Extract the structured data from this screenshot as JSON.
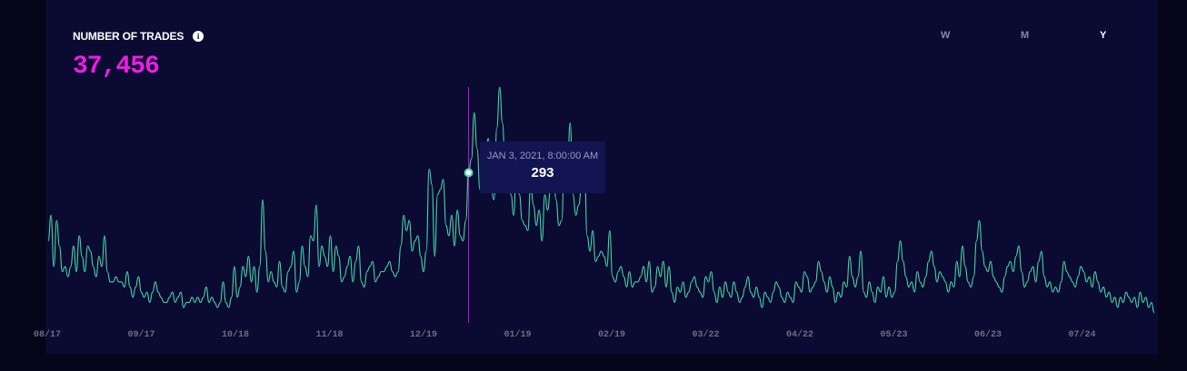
{
  "header": {
    "title": "NUMBER OF TRADES",
    "info_icon": "info-icon",
    "value": "37,456"
  },
  "periods": [
    {
      "label": "W",
      "active": false
    },
    {
      "label": "M",
      "active": false
    },
    {
      "label": "Y",
      "active": true
    }
  ],
  "tooltip": {
    "date": "JAN 3, 2021, 8:00:00 AM",
    "value": "293"
  },
  "colors": {
    "line": "#45d6a6",
    "crosshair": "#b020d8",
    "value": "#ee1ce6",
    "background": "#0b0a32"
  },
  "chart_data": {
    "type": "line",
    "x_tick_labels": [
      "08/17",
      "09/17",
      "10/18",
      "11/18",
      "12/19",
      "01/19",
      "02/19",
      "03/22",
      "04/22",
      "05/23",
      "06/23",
      "07/24"
    ],
    "ylim": [
      0,
      460
    ],
    "grid": false,
    "highlight_index": 149,
    "values": [
      160,
      210,
      110,
      200,
      150,
      100,
      110,
      90,
      110,
      150,
      100,
      170,
      130,
      100,
      150,
      140,
      110,
      90,
      130,
      110,
      170,
      100,
      80,
      80,
      90,
      80,
      80,
      70,
      100,
      70,
      50,
      70,
      90,
      60,
      50,
      60,
      40,
      60,
      80,
      60,
      50,
      40,
      40,
      50,
      60,
      40,
      50,
      60,
      30,
      40,
      40,
      50,
      40,
      50,
      40,
      50,
      70,
      40,
      50,
      40,
      30,
      40,
      80,
      40,
      30,
      50,
      110,
      50,
      70,
      110,
      90,
      130,
      80,
      110,
      60,
      110,
      240,
      140,
      80,
      100,
      80,
      70,
      120,
      70,
      60,
      100,
      110,
      140,
      60,
      80,
      150,
      110,
      90,
      170,
      160,
      230,
      110,
      150,
      130,
      110,
      170,
      100,
      150,
      130,
      80,
      90,
      110,
      130,
      80,
      120,
      150,
      80,
      70,
      100,
      110,
      120,
      80,
      90,
      100,
      100,
      110,
      120,
      100,
      90,
      100,
      150,
      210,
      180,
      200,
      140,
      160,
      170,
      130,
      100,
      140,
      300,
      270,
      130,
      250,
      260,
      280,
      190,
      170,
      210,
      150,
      220,
      170,
      160,
      200,
      293,
      320,
      410,
      340,
      260,
      300,
      330,
      360,
      260,
      240,
      380,
      460,
      390,
      290,
      300,
      250,
      210,
      330,
      250,
      200,
      190,
      180,
      270,
      230,
      190,
      220,
      160,
      250,
      220,
      260,
      300,
      240,
      190,
      200,
      330,
      300,
      390,
      250,
      210,
      230,
      260,
      330,
      170,
      140,
      180,
      120,
      130,
      140,
      130,
      110,
      180,
      90,
      80,
      100,
      110,
      90,
      70,
      100,
      70,
      80,
      80,
      90,
      110,
      80,
      120,
      60,
      70,
      110,
      90,
      120,
      70,
      110,
      60,
      40,
      70,
      60,
      80,
      50,
      60,
      80,
      90,
      70,
      60,
      50,
      90,
      80,
      100,
      60,
      40,
      70,
      50,
      80,
      60,
      50,
      80,
      60,
      40,
      50,
      70,
      90,
      60,
      50,
      70,
      50,
      30,
      60,
      50,
      40,
      60,
      80,
      70,
      50,
      40,
      60,
      50,
      40,
      80,
      70,
      60,
      100,
      90,
      60,
      70,
      80,
      120,
      100,
      80,
      60,
      90,
      70,
      40,
      60,
      50,
      80,
      70,
      130,
      90,
      70,
      90,
      140,
      60,
      50,
      80,
      60,
      40,
      70,
      60,
      90,
      50,
      70,
      50,
      60,
      120,
      160,
      120,
      90,
      70,
      80,
      60,
      100,
      80,
      70,
      90,
      120,
      140,
      110,
      80,
      100,
      90,
      80,
      60,
      80,
      70,
      120,
      90,
      150,
      110,
      80,
      70,
      90,
      160,
      200,
      140,
      110,
      100,
      120,
      90,
      80,
      70,
      60,
      90,
      110,
      120,
      100,
      130,
      150,
      100,
      70,
      80,
      100,
      110,
      80,
      120,
      140,
      90,
      70,
      80,
      60,
      70,
      60,
      80,
      120,
      100,
      90,
      80,
      70,
      90,
      110,
      100,
      80,
      90,
      70,
      100,
      80,
      60,
      70,
      50,
      60,
      40,
      50,
      30,
      50,
      40,
      60,
      50,
      40,
      50,
      30,
      60,
      40,
      50,
      30,
      40,
      20
    ]
  }
}
